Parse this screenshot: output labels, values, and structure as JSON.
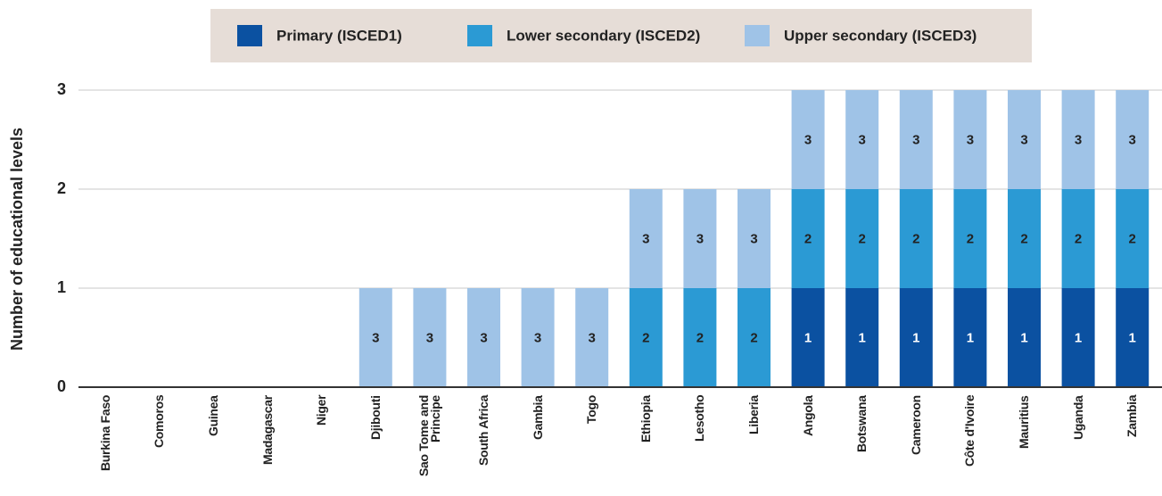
{
  "chart_data": {
    "type": "bar",
    "stacked": true,
    "y_label": "Number of educational levels",
    "categories": [
      "Burkina Faso",
      "Comoros",
      "Guinea",
      "Madagascar",
      "Niger",
      "Djibouti",
      "Sao Tome and Principe",
      "South Africa",
      "Gambia",
      "Togo",
      "Ethiopia",
      "Lesotho",
      "Liberia",
      "Angola",
      "Botswana",
      "Cameroon",
      "Côte d'Ivoire",
      "Mauritius",
      "Uganda",
      "Zambia"
    ],
    "series": [
      {
        "name": "Primary (ISCED1)",
        "segment_label": "1",
        "color": "#0b51a1",
        "values": [
          0,
          0,
          0,
          0,
          0,
          0,
          0,
          0,
          0,
          0,
          0,
          0,
          0,
          1,
          1,
          1,
          1,
          1,
          1,
          1
        ]
      },
      {
        "name": "Lower secondary (ISCED2)",
        "segment_label": "2",
        "color": "#2b9ad4",
        "values": [
          0,
          0,
          0,
          0,
          0,
          0,
          0,
          0,
          0,
          0,
          1,
          1,
          1,
          1,
          1,
          1,
          1,
          1,
          1,
          1
        ]
      },
      {
        "name": "Upper secondary (ISCED3)",
        "segment_label": "3",
        "color": "#9fc3e7",
        "values": [
          0,
          0,
          0,
          0,
          0,
          1,
          1,
          1,
          1,
          1,
          1,
          1,
          1,
          1,
          1,
          1,
          1,
          1,
          1,
          1
        ]
      }
    ],
    "ylim": [
      0,
      3
    ],
    "yticks": [
      0,
      1,
      2,
      3
    ],
    "grid": true,
    "legend": "top"
  }
}
